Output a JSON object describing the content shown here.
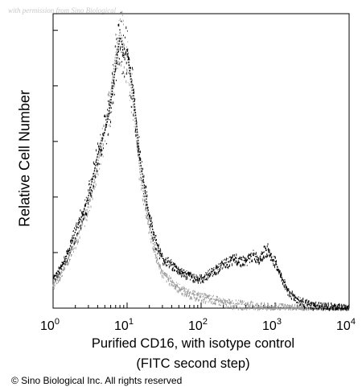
{
  "watermark": "with permission from Sino Biological",
  "copyright": "© Sino Biological Inc. All rights reserved",
  "chart_data": {
    "type": "histogram",
    "title": "",
    "xlabel_line1": "Purified CD16, with isotype control",
    "xlabel_line2": "(FITC second step)",
    "ylabel": "Relative Cell Number",
    "xscale": "log",
    "xlim": [
      1,
      10000
    ],
    "ylim": [
      0,
      100
    ],
    "x_ticks": [
      {
        "value": 1,
        "base": "10",
        "exp": "0"
      },
      {
        "value": 10,
        "base": "10",
        "exp": "1"
      },
      {
        "value": 100,
        "base": "10",
        "exp": "2"
      },
      {
        "value": 1000,
        "base": "10",
        "exp": "3"
      },
      {
        "value": 10000,
        "base": "10",
        "exp": "4"
      }
    ],
    "grid": false,
    "series": [
      {
        "name": "",
        "color": "#000000",
        "x": [
          1,
          1.3,
          1.6,
          2,
          2.5,
          3,
          3.5,
          4,
          4.5,
          5,
          5.5,
          6,
          6.5,
          7,
          7.5,
          8,
          8.5,
          9,
          10,
          11,
          12,
          13,
          14,
          15,
          17,
          19,
          22,
          25,
          30,
          40,
          50,
          70,
          100,
          150,
          200,
          300,
          400,
          500,
          600,
          700,
          800,
          900,
          1000,
          1200,
          1500,
          2000,
          3000,
          5000,
          10000
        ],
        "y": [
          10,
          14,
          19,
          26,
          32,
          38,
          45,
          52,
          57,
          60,
          64,
          70,
          76,
          82,
          87,
          92,
          90,
          85,
          88,
          80,
          74,
          66,
          58,
          50,
          42,
          34,
          27,
          22,
          17,
          15,
          13,
          11,
          10,
          13,
          15,
          17,
          16,
          18,
          17,
          19,
          20,
          17,
          16,
          11,
          6,
          3,
          1,
          0.5,
          0
        ]
      },
      {
        "name": "",
        "color": "#9a9a9a",
        "x": [
          1,
          1.3,
          1.6,
          2,
          2.5,
          3,
          3.5,
          4,
          4.5,
          5,
          5.5,
          6,
          6.5,
          7,
          7.5,
          8,
          8.5,
          9,
          10,
          11,
          12,
          13,
          14,
          15,
          17,
          19,
          22,
          25,
          30,
          40,
          50,
          70,
          100,
          150,
          200,
          300,
          500,
          700,
          1000,
          2000,
          10000
        ],
        "y": [
          8,
          12,
          17,
          23,
          29,
          35,
          42,
          49,
          55,
          60,
          66,
          72,
          80,
          86,
          90,
          94,
          92,
          89,
          86,
          78,
          70,
          62,
          54,
          46,
          38,
          30,
          23,
          17,
          12,
          9,
          7,
          5,
          4,
          3,
          2,
          1.5,
          1,
          0.5,
          0.3,
          0.2,
          0
        ]
      }
    ]
  }
}
